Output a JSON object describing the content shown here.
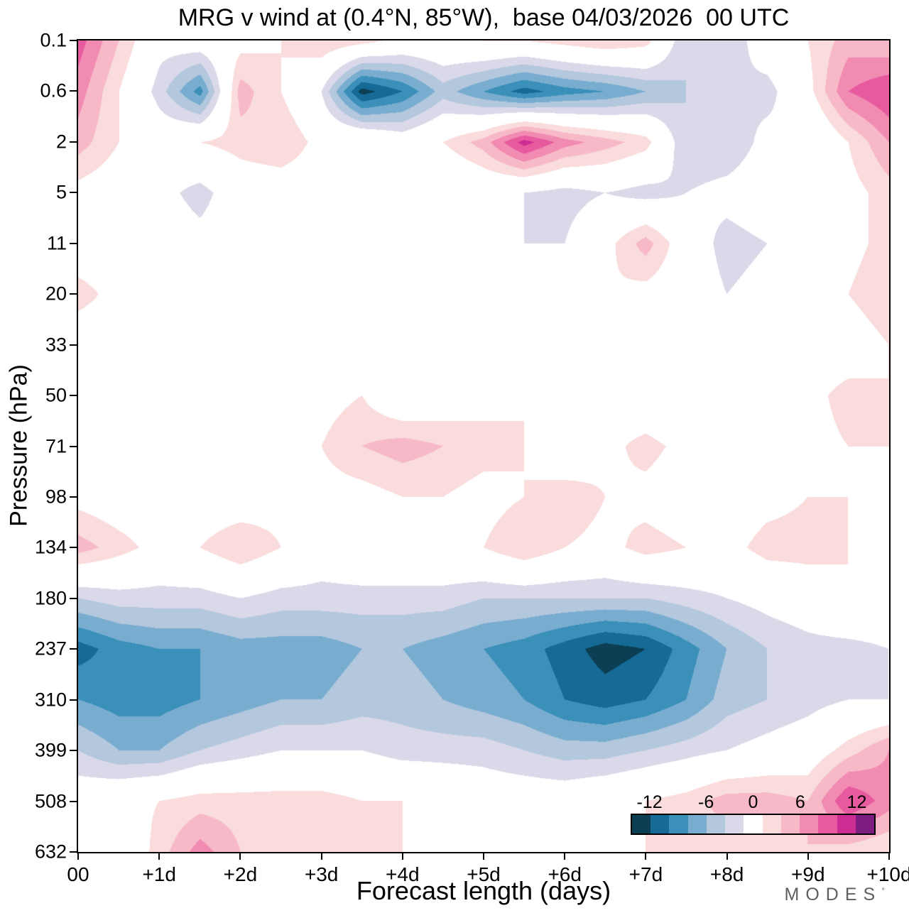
{
  "chart_data": {
    "type": "heatmap",
    "title": "MRG v wind at (0.4°N, 85°W),  base 04/03/2026  00 UTC",
    "xlabel": "Forecast length (days)",
    "ylabel": "Pressure (hPa)",
    "x_tick_labels": [
      "00",
      "+1d",
      "+2d",
      "+3d",
      "+4d",
      "+5d",
      "+6d",
      "+7d",
      "+8d",
      "+9d",
      "+10d"
    ],
    "y_tick_labels": [
      "0.1",
      "0.6",
      "2",
      "5",
      "11",
      "20",
      "33",
      "50",
      "71",
      "98",
      "134",
      "180",
      "237",
      "310",
      "399",
      "508",
      "632"
    ],
    "pressure_levels": [
      0.1,
      0.6,
      2,
      5,
      11,
      20,
      33,
      50,
      71,
      98,
      134,
      180,
      237,
      310,
      399,
      508,
      632
    ],
    "x_values": [
      0,
      0.5,
      1,
      1.5,
      2,
      2.5,
      3,
      3.5,
      4,
      4.5,
      5,
      5.5,
      6,
      6.5,
      7,
      7.5,
      8,
      8.5,
      9,
      9.5,
      10
    ],
    "levels": [
      -12,
      -10,
      -8,
      -6,
      -4,
      -2,
      2,
      4,
      6,
      8,
      10,
      12
    ],
    "colors": [
      "#0c3e54",
      "#156a96",
      "#3b90ba",
      "#79add0",
      "#b3c7dd",
      "#d9d9ea",
      "#ffffff",
      "#fadcdc",
      "#f7b9c8",
      "#f18bb2",
      "#e75a9f",
      "#cb2d92",
      "#7d1d7f"
    ],
    "colorbar_tick_labels": [
      "-12",
      "-6",
      "0",
      "6",
      "12"
    ],
    "legend_position": "inside-bottom-right",
    "grid_lines": "off",
    "grid": [
      [
        9,
        4,
        -1,
        0,
        1,
        2,
        4,
        3,
        1,
        1,
        2,
        2,
        3,
        4,
        3,
        -4,
        -4,
        0,
        2,
        5,
        4
      ],
      [
        7,
        2,
        -3,
        -9,
        5,
        2,
        -2,
        -13,
        -10,
        -5,
        -8,
        -11,
        -9,
        -8,
        -6,
        -4,
        -2,
        -3,
        1,
        8,
        10
      ],
      [
        5,
        2,
        0,
        2,
        3,
        4,
        1,
        2,
        0,
        2,
        5,
        11,
        7,
        5,
        3,
        -4,
        -4,
        -1,
        -2,
        2,
        6
      ],
      [
        1,
        0,
        -1,
        -3,
        0,
        0,
        0,
        -1,
        -2,
        -2,
        -1,
        -2,
        -3,
        -2,
        -3,
        -2,
        -1,
        0,
        0,
        1,
        3
      ],
      [
        0,
        0,
        0,
        -1,
        0,
        -1,
        -2,
        0,
        1,
        2,
        0,
        -2,
        -2,
        1,
        5,
        0,
        -3,
        -2,
        -1,
        1,
        3
      ],
      [
        3,
        1,
        0,
        0,
        -1,
        0,
        1,
        2,
        2,
        0,
        -2,
        -1,
        0,
        2,
        1,
        0,
        -2,
        -1,
        0,
        2,
        4
      ],
      [
        0,
        0,
        -1,
        0,
        -2,
        0,
        0,
        1,
        0,
        0,
        0,
        1,
        -1,
        0,
        1,
        0,
        0,
        1,
        0,
        0,
        2
      ],
      [
        1,
        1,
        0,
        0,
        0,
        1,
        1,
        2,
        -1,
        0,
        1,
        2,
        2,
        0,
        -1,
        -2,
        0,
        0,
        1,
        3,
        2
      ],
      [
        0,
        0,
        1,
        2,
        1,
        0,
        2,
        4,
        5,
        4,
        3,
        2,
        -2,
        1,
        3,
        1,
        0,
        0,
        1,
        2,
        2
      ],
      [
        1,
        0,
        0,
        0,
        0,
        1,
        1,
        1,
        2,
        2,
        1,
        2,
        4,
        2,
        1,
        0,
        0,
        1,
        2,
        2,
        1
      ],
      [
        5,
        3,
        1,
        2,
        4,
        2,
        0,
        1,
        1,
        1,
        2,
        4,
        2,
        1,
        3,
        2,
        1,
        3,
        3,
        2,
        1
      ],
      [
        -4,
        -3,
        -3,
        -3,
        -2,
        -3,
        -3,
        -3,
        -3,
        -3,
        -4,
        -4,
        -4,
        -4,
        -4,
        -3,
        -2,
        -1,
        0,
        2,
        1
      ],
      [
        -11,
        -9,
        -8,
        -8,
        -7,
        -7,
        -7,
        -6,
        -6,
        -7,
        -8,
        -9,
        -11,
        -13,
        -12,
        -9,
        -6,
        -4,
        -3,
        -3,
        -2
      ],
      [
        -8,
        -9,
        -9,
        -8,
        -7,
        -6,
        -6,
        -5,
        -5,
        -6,
        -7,
        -8,
        -10,
        -11,
        -10,
        -8,
        -5,
        -4,
        -3,
        -2,
        -2
      ],
      [
        -4,
        -6,
        -6,
        -4,
        -3,
        -2,
        -2,
        -2,
        -3,
        -3,
        -3,
        -4,
        -5,
        -5,
        -4,
        -3,
        -2,
        -1,
        0,
        3,
        6
      ],
      [
        0,
        1,
        2,
        3,
        3,
        3,
        3,
        2,
        2,
        1,
        0,
        0,
        0,
        1,
        2,
        3,
        5,
        5,
        4,
        10,
        7
      ],
      [
        -2,
        -1,
        3,
        7,
        4,
        3,
        3,
        3,
        2,
        1,
        0,
        0,
        1,
        1,
        2,
        2,
        3,
        3,
        4,
        3,
        2
      ]
    ]
  },
  "footer": {
    "logo": "MODES",
    "logo_mark": "°"
  }
}
